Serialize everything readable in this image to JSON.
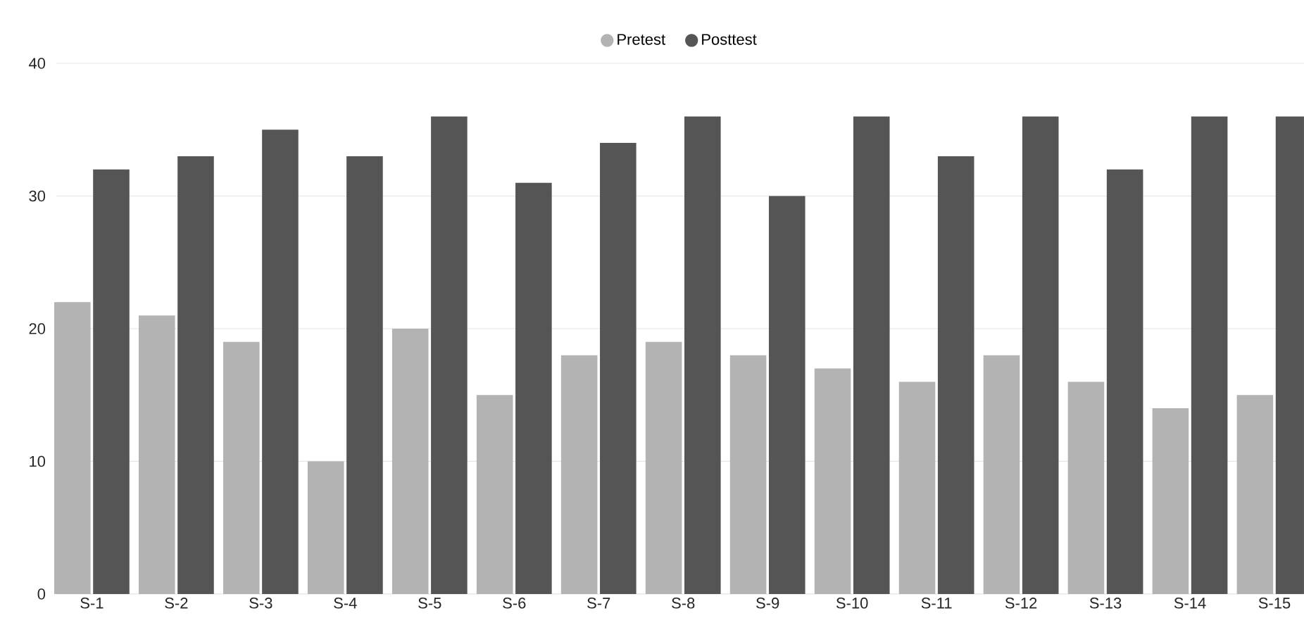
{
  "chart_data": {
    "type": "bar",
    "categories": [
      "S-1",
      "S-2",
      "S-3",
      "S-4",
      "S-5",
      "S-6",
      "S-7",
      "S-8",
      "S-9",
      "S-10",
      "S-11",
      "S-12",
      "S-13",
      "S-14",
      "S-15"
    ],
    "series": [
      {
        "name": "Pretest",
        "color": "#b3b3b3",
        "values": [
          22,
          21,
          19,
          10,
          20,
          15,
          18,
          19,
          18,
          17,
          16,
          18,
          16,
          14,
          15
        ]
      },
      {
        "name": "Posttest",
        "color": "#555555",
        "values": [
          32,
          33,
          35,
          33,
          36,
          31,
          34,
          36,
          30,
          36,
          33,
          36,
          32,
          36,
          36
        ]
      }
    ],
    "ylim": [
      0,
      40
    ],
    "yticks": [
      0,
      10,
      20,
      30,
      40
    ],
    "grid": "y",
    "legend": "top"
  }
}
